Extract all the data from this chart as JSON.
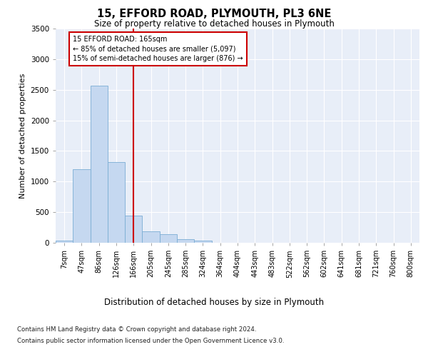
{
  "title": "15, EFFORD ROAD, PLYMOUTH, PL3 6NE",
  "subtitle": "Size of property relative to detached houses in Plymouth",
  "dist_label": "Distribution of detached houses by size in Plymouth",
  "ylabel": "Number of detached properties",
  "categories": [
    "7sqm",
    "47sqm",
    "86sqm",
    "126sqm",
    "166sqm",
    "205sqm",
    "245sqm",
    "285sqm",
    "324sqm",
    "364sqm",
    "404sqm",
    "443sqm",
    "483sqm",
    "522sqm",
    "562sqm",
    "602sqm",
    "641sqm",
    "681sqm",
    "721sqm",
    "760sqm",
    "800sqm"
  ],
  "values": [
    30,
    1200,
    2570,
    1320,
    440,
    190,
    140,
    55,
    30,
    0,
    0,
    0,
    0,
    0,
    0,
    0,
    0,
    0,
    0,
    0,
    0
  ],
  "bar_color": "#c5d8f0",
  "bar_edge_color": "#7aadd4",
  "vline_index": 4,
  "vline_color": "#cc0000",
  "ylim": [
    0,
    3500
  ],
  "yticks": [
    0,
    500,
    1000,
    1500,
    2000,
    2500,
    3000,
    3500
  ],
  "annotation_line1": "15 EFFORD ROAD: 165sqm",
  "annotation_line2": "← 85% of detached houses are smaller (5,097)",
  "annotation_line3": "15% of semi-detached houses are larger (876) →",
  "annotation_box_color": "#ffffff",
  "annotation_box_edge": "#cc0000",
  "footer_line1": "Contains HM Land Registry data © Crown copyright and database right 2024.",
  "footer_line2": "Contains public sector information licensed under the Open Government Licence v3.0.",
  "background_color": "#e8eef8",
  "grid_color": "#ffffff",
  "fig_bg": "#ffffff"
}
